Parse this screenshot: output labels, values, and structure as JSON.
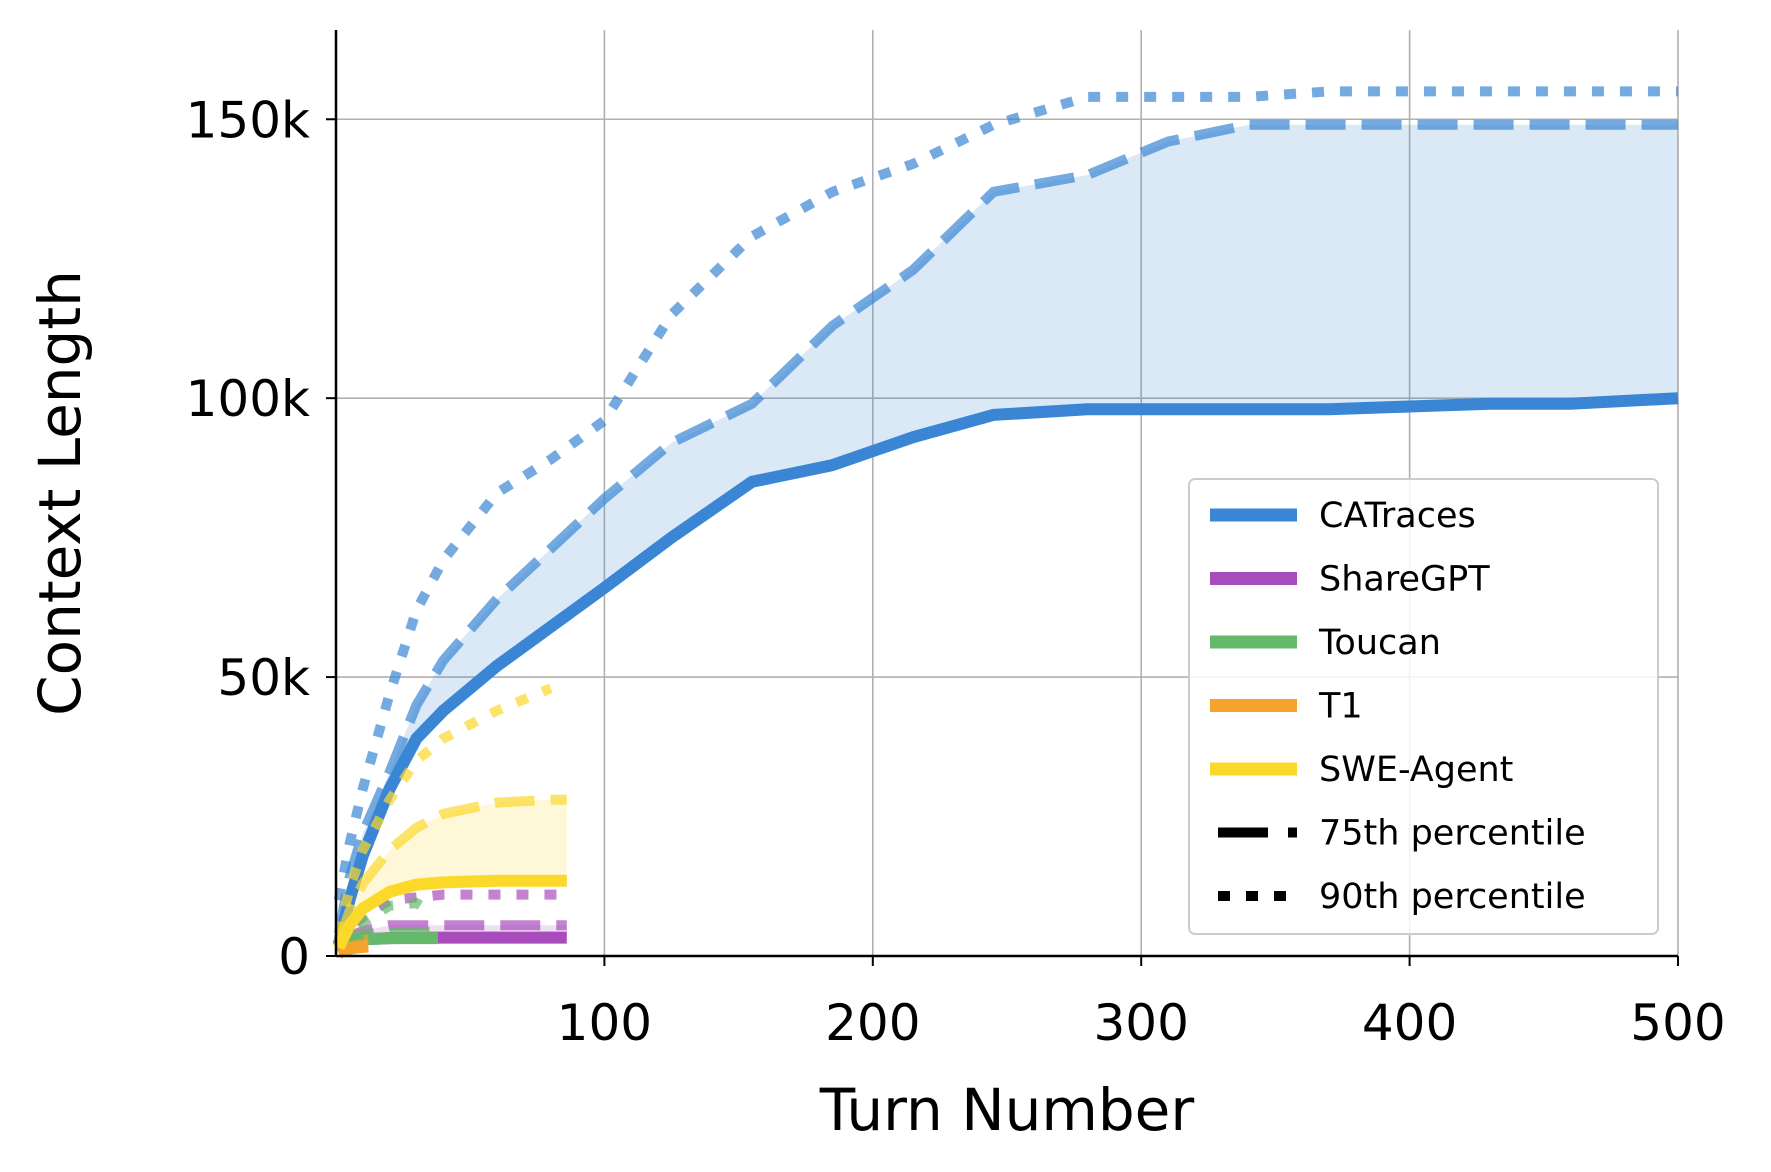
{
  "chart_data": {
    "type": "line",
    "xlabel": "Turn Number",
    "ylabel": "Context Length",
    "xlim": [
      0,
      500
    ],
    "ylim": [
      0,
      166000
    ],
    "xticks": [
      100,
      200,
      300,
      400,
      500
    ],
    "xtick_labels": [
      "100",
      "200",
      "300",
      "400",
      "500"
    ],
    "yticks": [
      0,
      50000,
      100000,
      150000
    ],
    "ytick_labels": [
      "0",
      "50k",
      "100k",
      "150k"
    ],
    "grid": true,
    "legend_position": "lower-right",
    "series": [
      {
        "name": "CATraces",
        "color": "#3a86d4",
        "median": {
          "x": [
            1,
            5,
            10,
            20,
            30,
            40,
            60,
            80,
            100,
            125,
            155,
            185,
            215,
            245,
            280,
            310,
            340,
            370,
            400,
            430,
            460,
            500
          ],
          "y": [
            2000,
            10000,
            18000,
            30000,
            39000,
            44000,
            52000,
            59000,
            66000,
            75000,
            85000,
            88000,
            93000,
            97000,
            98000,
            98000,
            98000,
            98000,
            98500,
            99000,
            99000,
            100000
          ]
        },
        "p75": {
          "x": [
            1,
            5,
            10,
            20,
            30,
            40,
            60,
            80,
            100,
            125,
            155,
            185,
            215,
            245,
            280,
            310,
            340,
            370,
            400,
            430,
            460,
            500
          ],
          "y": [
            4000,
            14000,
            22000,
            33000,
            45000,
            53000,
            64000,
            73000,
            82000,
            92000,
            99000,
            113000,
            123000,
            137000,
            140000,
            146000,
            149000,
            149000,
            149000,
            149000,
            149000,
            149000
          ]
        },
        "p90": {
          "x": [
            1,
            5,
            10,
            20,
            30,
            40,
            60,
            80,
            100,
            125,
            155,
            185,
            215,
            245,
            280,
            310,
            340,
            370,
            400,
            430,
            460,
            500
          ],
          "y": [
            10000,
            20000,
            30000,
            47000,
            62000,
            71000,
            83000,
            89000,
            96000,
            115000,
            129000,
            137000,
            142000,
            149000,
            154000,
            154000,
            154000,
            155000,
            155000,
            155000,
            155000,
            155000
          ]
        }
      },
      {
        "name": "ShareGPT",
        "color": "#a94cbb",
        "median": {
          "x": [
            1,
            5,
            10,
            20,
            40,
            60,
            80,
            86
          ],
          "y": [
            1000,
            2500,
            3000,
            3200,
            3300,
            3300,
            3300,
            3300
          ]
        },
        "p75": {
          "x": [
            1,
            5,
            10,
            20,
            40,
            60,
            80,
            86
          ],
          "y": [
            1500,
            3500,
            4500,
            5500,
            5500,
            5500,
            5500,
            5500
          ]
        },
        "p90": {
          "x": [
            1,
            5,
            10,
            20,
            40,
            60,
            80,
            86
          ],
          "y": [
            2000,
            5000,
            7000,
            10000,
            11000,
            11000,
            11000,
            11000
          ]
        }
      },
      {
        "name": "Toucan",
        "color": "#65b96a",
        "median": {
          "x": [
            1,
            5,
            10,
            20,
            30,
            38
          ],
          "y": [
            1000,
            2500,
            3000,
            3200,
            3200,
            3200
          ]
        },
        "p75": {
          "x": [
            1,
            5,
            10,
            20,
            30,
            38
          ],
          "y": [
            1500,
            3500,
            4000,
            4200,
            4300,
            4300
          ]
        },
        "p90": {
          "x": [
            1,
            5,
            10,
            20,
            30,
            35
          ],
          "y": [
            2000,
            4000,
            6000,
            9000,
            9500,
            8000
          ]
        }
      },
      {
        "name": "T1",
        "color": "#f5a32c",
        "median": {
          "x": [
            1,
            3,
            6,
            9,
            12
          ],
          "y": [
            500,
            1000,
            1400,
            1600,
            1700
          ]
        },
        "p75": {
          "x": [
            1,
            3,
            6,
            9,
            12
          ],
          "y": [
            700,
            1300,
            1800,
            2100,
            2200
          ]
        },
        "p90": {
          "x": [
            1,
            3,
            6,
            9,
            12
          ],
          "y": [
            900,
            1700,
            2400,
            2800,
            3000
          ]
        }
      },
      {
        "name": "SWE-Agent",
        "color": "#fbd92b",
        "median": {
          "x": [
            1,
            5,
            10,
            20,
            30,
            40,
            60,
            80,
            86
          ],
          "y": [
            1500,
            5500,
            8500,
            11500,
            12800,
            13200,
            13500,
            13500,
            13500
          ]
        },
        "p75": {
          "x": [
            1,
            5,
            10,
            20,
            30,
            40,
            60,
            80,
            86
          ],
          "y": [
            2500,
            8000,
            13000,
            19000,
            23000,
            25500,
            27500,
            28000,
            28000
          ]
        },
        "p90": {
          "x": [
            1,
            5,
            10,
            20,
            30,
            40,
            60,
            80
          ],
          "y": [
            4000,
            12000,
            19000,
            28000,
            35000,
            39000,
            44000,
            48000
          ]
        }
      }
    ],
    "legend": [
      {
        "label": "CATraces",
        "style": "solid",
        "color": "#3a86d4"
      },
      {
        "label": "ShareGPT",
        "style": "solid",
        "color": "#a94cbb"
      },
      {
        "label": "Toucan",
        "style": "solid",
        "color": "#65b96a"
      },
      {
        "label": "T1",
        "style": "solid",
        "color": "#f5a32c"
      },
      {
        "label": "SWE-Agent",
        "style": "solid",
        "color": "#fbd92b"
      },
      {
        "label": "75th percentile",
        "style": "dashed",
        "color": "#000000"
      },
      {
        "label": "90th percentile",
        "style": "dotted",
        "color": "#000000"
      }
    ]
  }
}
